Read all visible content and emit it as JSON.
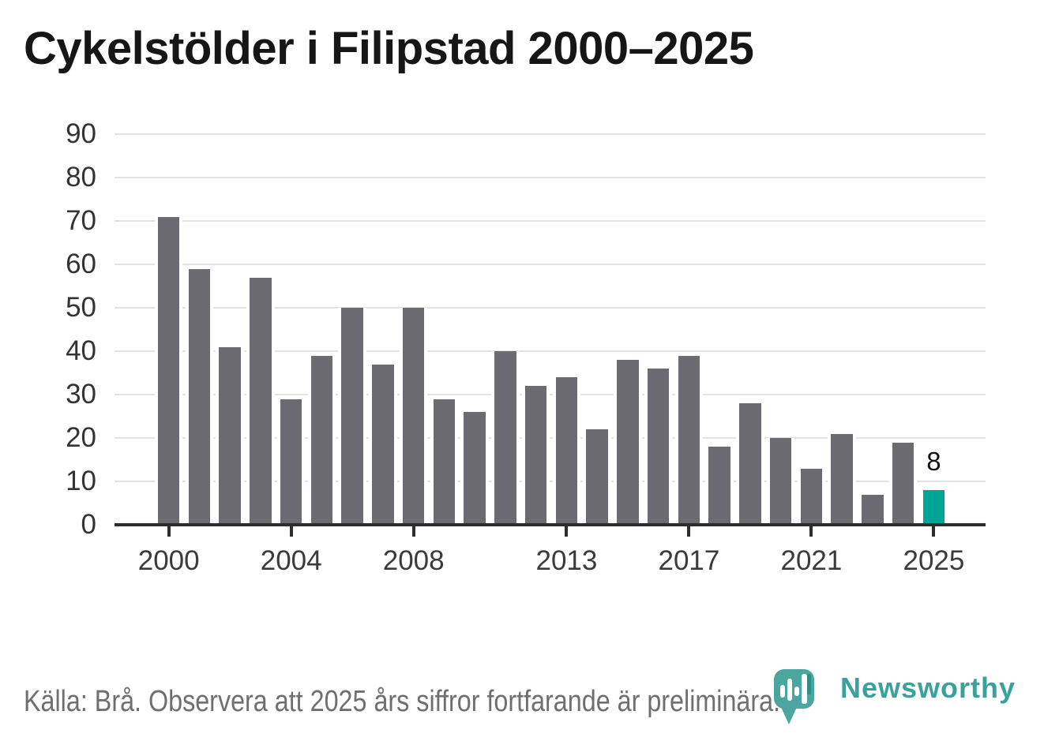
{
  "title": "Cykelstölder i Filipstad 2000–2025",
  "footer": {
    "source_note": "Källa: Brå. Observera att 2025 års siffror fortfarande är preliminära."
  },
  "branding": {
    "name": "Newsworthy",
    "logo_color": "#4aa69e",
    "text_color": "#3aa29b"
  },
  "chart_data": {
    "type": "bar",
    "title": "Cykelstölder i Filipstad 2000–2025",
    "x": [
      2000,
      2001,
      2002,
      2003,
      2004,
      2005,
      2006,
      2007,
      2008,
      2009,
      2010,
      2011,
      2012,
      2013,
      2014,
      2015,
      2016,
      2017,
      2018,
      2019,
      2020,
      2021,
      2022,
      2023,
      2024,
      2025
    ],
    "values": [
      71,
      59,
      41,
      57,
      29,
      39,
      50,
      37,
      50,
      29,
      26,
      40,
      32,
      34,
      22,
      38,
      36,
      39,
      18,
      28,
      20,
      13,
      21,
      7,
      19,
      8
    ],
    "bar_color": "#6c6b71",
    "highlight_index": 25,
    "highlight_color": "#00a695",
    "highlight_label": "8",
    "ylim": [
      0,
      90
    ],
    "yticks": [
      0,
      10,
      20,
      30,
      40,
      50,
      60,
      70,
      80,
      90
    ],
    "xticks": [
      2000,
      2004,
      2008,
      2013,
      2017,
      2021,
      2025
    ],
    "grid": "horizontal",
    "gridline_color": "#e3e3e3",
    "axis_color": "#2d2d2d",
    "legend": "none"
  }
}
